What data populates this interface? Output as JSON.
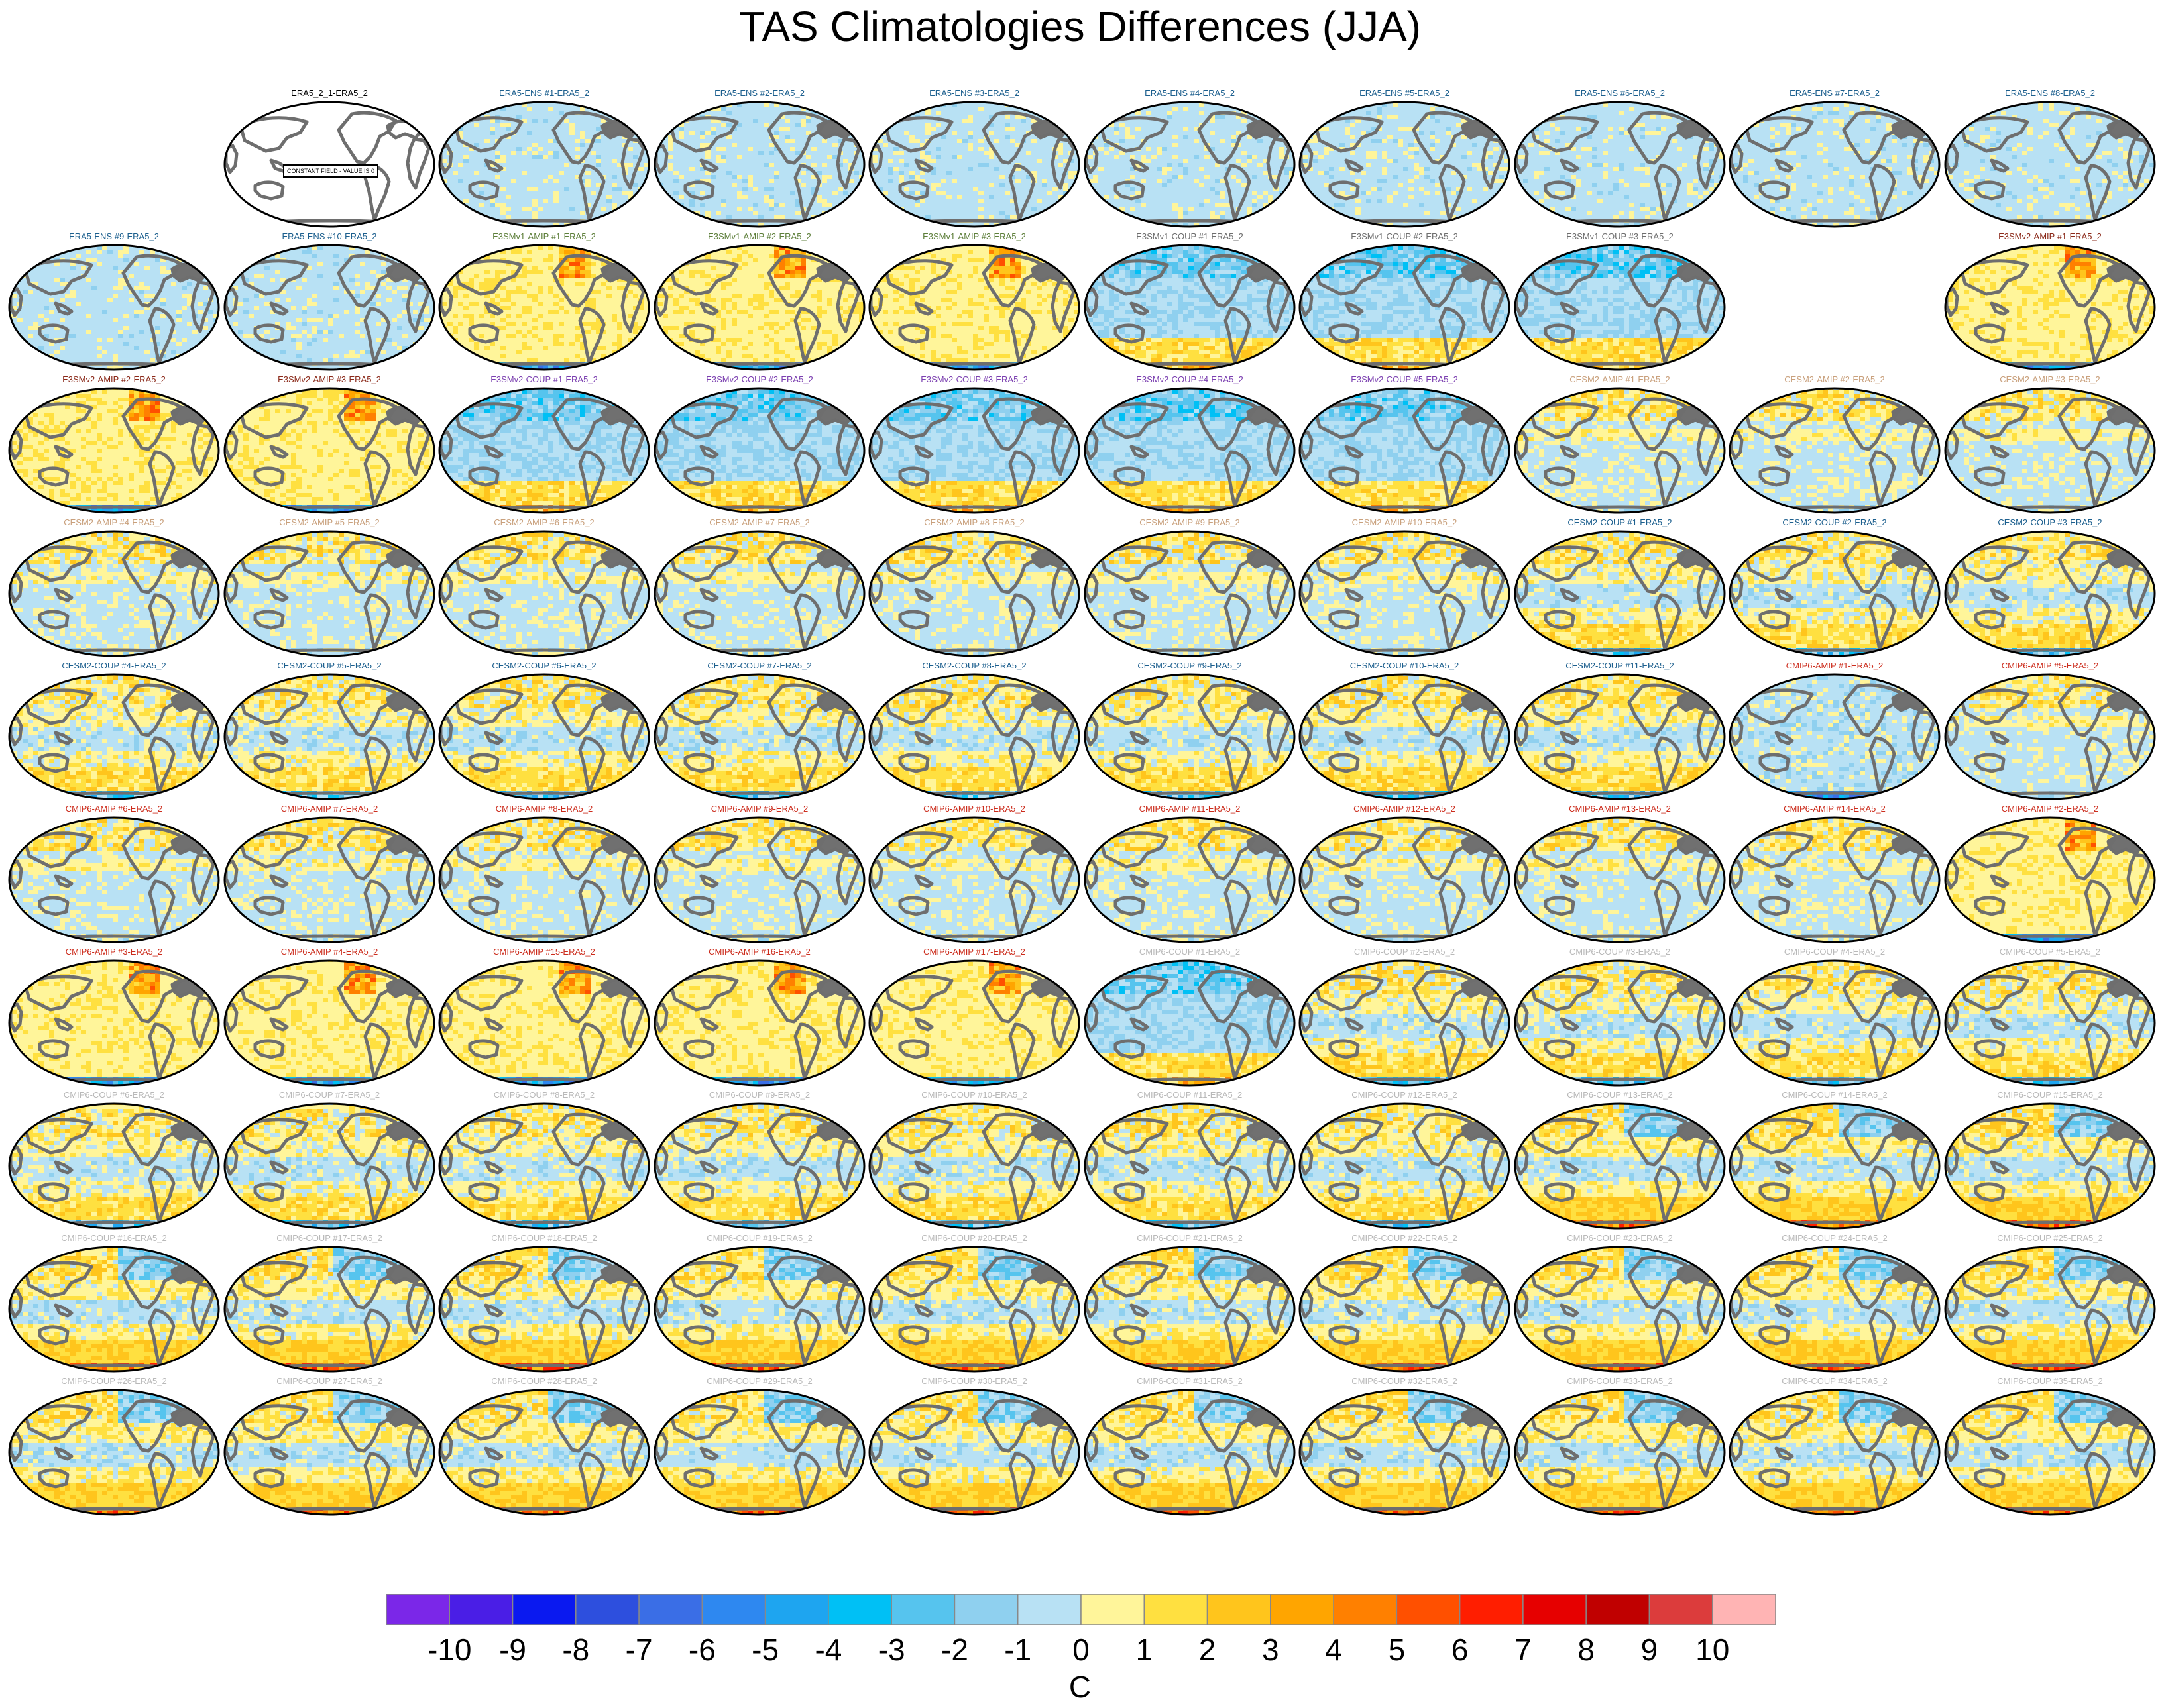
{
  "title": "TAS Climatologies Differences (JJA)",
  "units": "C",
  "colorbar": {
    "labels": [
      "-10",
      "-9",
      "-8",
      "-7",
      "-6",
      "-5",
      "-4",
      "-3",
      "-2",
      "-1",
      "0",
      "1",
      "2",
      "3",
      "4",
      "5",
      "6",
      "7",
      "8",
      "9",
      "10"
    ],
    "colors": [
      "#7b27e8",
      "#4a1ee6",
      "#0a19f0",
      "#2d4fde",
      "#3a6ee6",
      "#2e88f0",
      "#1ea5f0",
      "#00c0f5",
      "#56c4ee",
      "#8fd0ef",
      "#b8e1f4",
      "#fff59a",
      "#ffe040",
      "#ffc51c",
      "#ffa500",
      "#ff8000",
      "#ff5000",
      "#ff1e00",
      "#e60000",
      "#c00000",
      "#dc3c3c",
      "#ffb4b4"
    ]
  },
  "group_colors": {
    "ERA5-ENS": "#1c5f8e",
    "E3SMv1-AMIP": "#5e7f3b",
    "E3SMv1-COUP": "#6e6e6e",
    "E3SMv2-AMIP": "#8b2a1a",
    "E3SMv2-COUP": "#7b3fb0",
    "CESM2-AMIP": "#c9a07c",
    "CESM2-COUP": "#1c5f8e",
    "CMIP6-AMIP": "#cc2d1d",
    "CMIP6-COUP": "#b9b9b9",
    "ref": "#000000"
  },
  "rows": [
    [
      null,
      {
        "label": "ERA5_2_1-ERA5_2",
        "group": "ref",
        "pattern": "blank",
        "note": "CONSTANT FIELD - VALUE IS 0"
      },
      {
        "label": "ERA5-ENS   #1-ERA5_2",
        "group": "ERA5-ENS",
        "pattern": "ens"
      },
      {
        "label": "ERA5-ENS   #2-ERA5_2",
        "group": "ERA5-ENS",
        "pattern": "ens"
      },
      {
        "label": "ERA5-ENS   #3-ERA5_2",
        "group": "ERA5-ENS",
        "pattern": "ens"
      },
      {
        "label": "ERA5-ENS   #4-ERA5_2",
        "group": "ERA5-ENS",
        "pattern": "ens"
      },
      {
        "label": "ERA5-ENS   #5-ERA5_2",
        "group": "ERA5-ENS",
        "pattern": "ens"
      },
      {
        "label": "ERA5-ENS   #6-ERA5_2",
        "group": "ERA5-ENS",
        "pattern": "ens"
      },
      {
        "label": "ERA5-ENS   #7-ERA5_2",
        "group": "ERA5-ENS",
        "pattern": "ens"
      },
      {
        "label": "ERA5-ENS   #8-ERA5_2",
        "group": "ERA5-ENS",
        "pattern": "ens"
      }
    ],
    [
      {
        "label": "ERA5-ENS   #9-ERA5_2",
        "group": "ERA5-ENS",
        "pattern": "ens"
      },
      {
        "label": "ERA5-ENS   #10-ERA5_2",
        "group": "ERA5-ENS",
        "pattern": "ens"
      },
      {
        "label": "E3SMv1-AMIP #1-ERA5_2",
        "group": "E3SMv1-AMIP",
        "pattern": "warm"
      },
      {
        "label": "E3SMv1-AMIP #2-ERA5_2",
        "group": "E3SMv1-AMIP",
        "pattern": "warm"
      },
      {
        "label": "E3SMv1-AMIP #3-ERA5_2",
        "group": "E3SMv1-AMIP",
        "pattern": "warm"
      },
      {
        "label": "E3SMv1-COUP #1-ERA5_2",
        "group": "E3SMv1-COUP",
        "pattern": "coupcold"
      },
      {
        "label": "E3SMv1-COUP #2-ERA5_2",
        "group": "E3SMv1-COUP",
        "pattern": "coupcold"
      },
      {
        "label": "E3SMv1-COUP #3-ERA5_2",
        "group": "E3SMv1-COUP",
        "pattern": "coupcold"
      },
      null,
      {
        "label": "E3SMv2-AMIP #1-ERA5_2",
        "group": "E3SMv2-AMIP",
        "pattern": "warm"
      }
    ],
    [
      {
        "label": "E3SMv2-AMIP #2-ERA5_2",
        "group": "E3SMv2-AMIP",
        "pattern": "warm"
      },
      {
        "label": "E3SMv2-AMIP #3-ERA5_2",
        "group": "E3SMv2-AMIP",
        "pattern": "warm"
      },
      {
        "label": "E3SMv2-COUP #1-ERA5_2",
        "group": "E3SMv2-COUP",
        "pattern": "coupcold"
      },
      {
        "label": "E3SMv2-COUP #2-ERA5_2",
        "group": "E3SMv2-COUP",
        "pattern": "coupcold"
      },
      {
        "label": "E3SMv2-COUP #3-ERA5_2",
        "group": "E3SMv2-COUP",
        "pattern": "coupcold"
      },
      {
        "label": "E3SMv2-COUP #4-ERA5_2",
        "group": "E3SMv2-COUP",
        "pattern": "coupcold"
      },
      {
        "label": "E3SMv2-COUP #5-ERA5_2",
        "group": "E3SMv2-COUP",
        "pattern": "coupcold"
      },
      {
        "label": "CESM2-AMIP  #1-ERA5_2",
        "group": "CESM2-AMIP",
        "pattern": "amip"
      },
      {
        "label": "CESM2-AMIP  #2-ERA5_2",
        "group": "CESM2-AMIP",
        "pattern": "amip"
      },
      {
        "label": "CESM2-AMIP  #3-ERA5_2",
        "group": "CESM2-AMIP",
        "pattern": "amip"
      }
    ],
    [
      {
        "label": "CESM2-AMIP  #4-ERA5_2",
        "group": "CESM2-AMIP",
        "pattern": "amip"
      },
      {
        "label": "CESM2-AMIP  #5-ERA5_2",
        "group": "CESM2-AMIP",
        "pattern": "amip"
      },
      {
        "label": "CESM2-AMIP  #6-ERA5_2",
        "group": "CESM2-AMIP",
        "pattern": "amip"
      },
      {
        "label": "CESM2-AMIP  #7-ERA5_2",
        "group": "CESM2-AMIP",
        "pattern": "amip"
      },
      {
        "label": "CESM2-AMIP  #8-ERA5_2",
        "group": "CESM2-AMIP",
        "pattern": "amip"
      },
      {
        "label": "CESM2-AMIP  #9-ERA5_2",
        "group": "CESM2-AMIP",
        "pattern": "amip"
      },
      {
        "label": "CESM2-AMIP  #10-ERA5_2",
        "group": "CESM2-AMIP",
        "pattern": "amip"
      },
      {
        "label": "CESM2-COUP  #1-ERA5_2",
        "group": "CESM2-COUP",
        "pattern": "coup"
      },
      {
        "label": "CESM2-COUP  #2-ERA5_2",
        "group": "CESM2-COUP",
        "pattern": "coup"
      },
      {
        "label": "CESM2-COUP  #3-ERA5_2",
        "group": "CESM2-COUP",
        "pattern": "coup"
      }
    ],
    [
      {
        "label": "CESM2-COUP  #4-ERA5_2",
        "group": "CESM2-COUP",
        "pattern": "coup"
      },
      {
        "label": "CESM2-COUP  #5-ERA5_2",
        "group": "CESM2-COUP",
        "pattern": "coup"
      },
      {
        "label": "CESM2-COUP  #6-ERA5_2",
        "group": "CESM2-COUP",
        "pattern": "coup"
      },
      {
        "label": "CESM2-COUP  #7-ERA5_2",
        "group": "CESM2-COUP",
        "pattern": "coup"
      },
      {
        "label": "CESM2-COUP  #8-ERA5_2",
        "group": "CESM2-COUP",
        "pattern": "coup"
      },
      {
        "label": "CESM2-COUP  #9-ERA5_2",
        "group": "CESM2-COUP",
        "pattern": "coup"
      },
      {
        "label": "CESM2-COUP  #10-ERA5_2",
        "group": "CESM2-COUP",
        "pattern": "coup"
      },
      {
        "label": "CESM2-COUP  #11-ERA5_2",
        "group": "CESM2-COUP",
        "pattern": "coup"
      },
      {
        "label": "CMIP6-AMIP  #1-ERA5_2",
        "group": "CMIP6-AMIP",
        "pattern": "amipcold"
      },
      {
        "label": "CMIP6-AMIP  #5-ERA5_2",
        "group": "CMIP6-AMIP",
        "pattern": "amip"
      }
    ],
    [
      {
        "label": "CMIP6-AMIP  #6-ERA5_2",
        "group": "CMIP6-AMIP",
        "pattern": "amip"
      },
      {
        "label": "CMIP6-AMIP  #7-ERA5_2",
        "group": "CMIP6-AMIP",
        "pattern": "amip"
      },
      {
        "label": "CMIP6-AMIP  #8-ERA5_2",
        "group": "CMIP6-AMIP",
        "pattern": "amip"
      },
      {
        "label": "CMIP6-AMIP  #9-ERA5_2",
        "group": "CMIP6-AMIP",
        "pattern": "amip"
      },
      {
        "label": "CMIP6-AMIP  #10-ERA5_2",
        "group": "CMIP6-AMIP",
        "pattern": "amip"
      },
      {
        "label": "CMIP6-AMIP  #11-ERA5_2",
        "group": "CMIP6-AMIP",
        "pattern": "amip"
      },
      {
        "label": "CMIP6-AMIP  #12-ERA5_2",
        "group": "CMIP6-AMIP",
        "pattern": "amip"
      },
      {
        "label": "CMIP6-AMIP  #13-ERA5_2",
        "group": "CMIP6-AMIP",
        "pattern": "amip"
      },
      {
        "label": "CMIP6-AMIP  #14-ERA5_2",
        "group": "CMIP6-AMIP",
        "pattern": "amip"
      },
      {
        "label": "CMIP6-AMIP  #2-ERA5_2",
        "group": "CMIP6-AMIP",
        "pattern": "warm"
      }
    ],
    [
      {
        "label": "CMIP6-AMIP  #3-ERA5_2",
        "group": "CMIP6-AMIP",
        "pattern": "warm"
      },
      {
        "label": "CMIP6-AMIP  #4-ERA5_2",
        "group": "CMIP6-AMIP",
        "pattern": "warm"
      },
      {
        "label": "CMIP6-AMIP  #15-ERA5_2",
        "group": "CMIP6-AMIP",
        "pattern": "warm"
      },
      {
        "label": "CMIP6-AMIP  #16-ERA5_2",
        "group": "CMIP6-AMIP",
        "pattern": "warm"
      },
      {
        "label": "CMIP6-AMIP  #17-ERA5_2",
        "group": "CMIP6-AMIP",
        "pattern": "warm"
      },
      {
        "label": "CMIP6-COUP  #1-ERA5_2",
        "group": "CMIP6-COUP",
        "pattern": "coupcold"
      },
      {
        "label": "CMIP6-COUP  #2-ERA5_2",
        "group": "CMIP6-COUP",
        "pattern": "coup"
      },
      {
        "label": "CMIP6-COUP  #3-ERA5_2",
        "group": "CMIP6-COUP",
        "pattern": "coup"
      },
      {
        "label": "CMIP6-COUP  #4-ERA5_2",
        "group": "CMIP6-COUP",
        "pattern": "coup"
      },
      {
        "label": "CMIP6-COUP  #5-ERA5_2",
        "group": "CMIP6-COUP",
        "pattern": "coup"
      }
    ],
    [
      {
        "label": "CMIP6-COUP  #6-ERA5_2",
        "group": "CMIP6-COUP",
        "pattern": "coup"
      },
      {
        "label": "CMIP6-COUP  #7-ERA5_2",
        "group": "CMIP6-COUP",
        "pattern": "coup"
      },
      {
        "label": "CMIP6-COUP  #8-ERA5_2",
        "group": "CMIP6-COUP",
        "pattern": "coup"
      },
      {
        "label": "CMIP6-COUP  #9-ERA5_2",
        "group": "CMIP6-COUP",
        "pattern": "coup"
      },
      {
        "label": "CMIP6-COUP  #10-ERA5_2",
        "group": "CMIP6-COUP",
        "pattern": "coup"
      },
      {
        "label": "CMIP6-COUP  #11-ERA5_2",
        "group": "CMIP6-COUP",
        "pattern": "coup"
      },
      {
        "label": "CMIP6-COUP  #12-ERA5_2",
        "group": "CMIP6-COUP",
        "pattern": "coup"
      },
      {
        "label": "CMIP6-COUP  #13-ERA5_2",
        "group": "CMIP6-COUP",
        "pattern": "coupwarm"
      },
      {
        "label": "CMIP6-COUP  #14-ERA5_2",
        "group": "CMIP6-COUP",
        "pattern": "coupwarm"
      },
      {
        "label": "CMIP6-COUP  #15-ERA5_2",
        "group": "CMIP6-COUP",
        "pattern": "coupwarm"
      }
    ],
    [
      {
        "label": "CMIP6-COUP  #16-ERA5_2",
        "group": "CMIP6-COUP",
        "pattern": "coupwarm"
      },
      {
        "label": "CMIP6-COUP  #17-ERA5_2",
        "group": "CMIP6-COUP",
        "pattern": "coupwarm"
      },
      {
        "label": "CMIP6-COUP  #18-ERA5_2",
        "group": "CMIP6-COUP",
        "pattern": "coupwarm"
      },
      {
        "label": "CMIP6-COUP  #19-ERA5_2",
        "group": "CMIP6-COUP",
        "pattern": "coupwarm"
      },
      {
        "label": "CMIP6-COUP  #20-ERA5_2",
        "group": "CMIP6-COUP",
        "pattern": "coupwarm"
      },
      {
        "label": "CMIP6-COUP  #21-ERA5_2",
        "group": "CMIP6-COUP",
        "pattern": "coupwarm"
      },
      {
        "label": "CMIP6-COUP  #22-ERA5_2",
        "group": "CMIP6-COUP",
        "pattern": "coupwarm"
      },
      {
        "label": "CMIP6-COUP  #23-ERA5_2",
        "group": "CMIP6-COUP",
        "pattern": "coupwarm"
      },
      {
        "label": "CMIP6-COUP  #24-ERA5_2",
        "group": "CMIP6-COUP",
        "pattern": "coupwarm"
      },
      {
        "label": "CMIP6-COUP  #25-ERA5_2",
        "group": "CMIP6-COUP",
        "pattern": "coupwarm"
      }
    ],
    [
      {
        "label": "CMIP6-COUP  #26-ERA5_2",
        "group": "CMIP6-COUP",
        "pattern": "coupwarm"
      },
      {
        "label": "CMIP6-COUP  #27-ERA5_2",
        "group": "CMIP6-COUP",
        "pattern": "coupwarm"
      },
      {
        "label": "CMIP6-COUP  #28-ERA5_2",
        "group": "CMIP6-COUP",
        "pattern": "coupwarm"
      },
      {
        "label": "CMIP6-COUP  #29-ERA5_2",
        "group": "CMIP6-COUP",
        "pattern": "coupwarm"
      },
      {
        "label": "CMIP6-COUP  #30-ERA5_2",
        "group": "CMIP6-COUP",
        "pattern": "coupwarm"
      },
      {
        "label": "CMIP6-COUP  #31-ERA5_2",
        "group": "CMIP6-COUP",
        "pattern": "coupwarm"
      },
      {
        "label": "CMIP6-COUP  #32-ERA5_2",
        "group": "CMIP6-COUP",
        "pattern": "coupwarm"
      },
      {
        "label": "CMIP6-COUP  #33-ERA5_2",
        "group": "CMIP6-COUP",
        "pattern": "coupwarm"
      },
      {
        "label": "CMIP6-COUP  #34-ERA5_2",
        "group": "CMIP6-COUP",
        "pattern": "coupwarm"
      },
      {
        "label": "CMIP6-COUP  #35-ERA5_2",
        "group": "CMIP6-COUP",
        "pattern": "coupwarm"
      }
    ]
  ]
}
